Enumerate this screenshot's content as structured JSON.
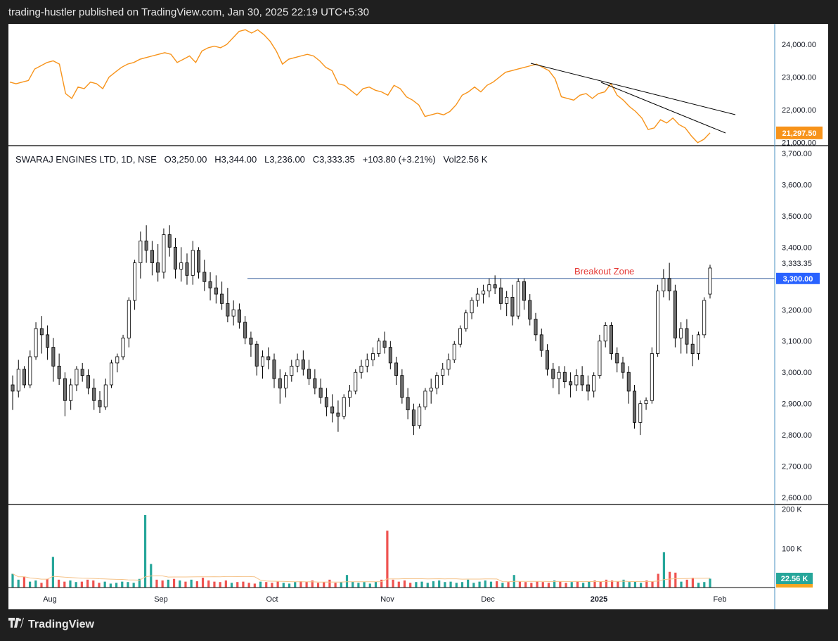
{
  "header": {
    "publish_line": "trading-hustler published on TradingView.com, Jan 30, 2025 22:19 UTC+5:30"
  },
  "footer": {
    "logo_text": "TradingView"
  },
  "ohlc": {
    "symbol": "SWARAJ ENGINES LTD, 1D, NSE",
    "open": "O3,250.00",
    "high": "H3,344.00",
    "low": "L3,236.00",
    "close": "C3,333.35",
    "change": "+103.80 (+3.21%)",
    "volume": "Vol22.56 K"
  },
  "colors": {
    "up_volume": "#26a69a",
    "down_volume": "#ef5350",
    "index_line": "#f7931a",
    "breakout": "#e53935",
    "level_line": "#2962ff"
  },
  "chart_data": [
    {
      "type": "line",
      "pane": "index",
      "y_ticks": [
        "24,000.00",
        "23,000.00",
        "22,000.00",
        "21,000.00"
      ],
      "ylim": [
        20950,
        24500
      ],
      "last_value_label": "21,297.50",
      "values": [
        22850,
        22800,
        22850,
        22900,
        23250,
        23350,
        23450,
        23500,
        23400,
        22500,
        22350,
        22700,
        22650,
        22850,
        22800,
        22650,
        23000,
        23150,
        23300,
        23400,
        23450,
        23550,
        23600,
        23650,
        23700,
        23750,
        23700,
        23450,
        23550,
        23650,
        23450,
        23800,
        23900,
        23950,
        23900,
        24000,
        24200,
        24400,
        24450,
        24350,
        24450,
        24300,
        24100,
        23800,
        23400,
        23550,
        23600,
        23650,
        23700,
        23650,
        23500,
        23300,
        23200,
        22800,
        22750,
        22600,
        22450,
        22650,
        22700,
        22600,
        22550,
        22450,
        22750,
        22650,
        22400,
        22300,
        22150,
        21800,
        21850,
        21900,
        21850,
        21950,
        22150,
        22450,
        22550,
        22700,
        22550,
        22750,
        22850,
        23000,
        23150,
        23200,
        23250,
        23300,
        23350,
        23400,
        23300,
        23200,
        22950,
        22400,
        22350,
        22300,
        22450,
        22500,
        22350,
        22500,
        22550,
        22800,
        22450,
        22300,
        22100,
        21950,
        21750,
        21400,
        21450,
        21700,
        21600,
        21750,
        21550,
        21450,
        21200,
        21000,
        21100,
        21297.5
      ]
    },
    {
      "type": "candlestick",
      "pane": "price",
      "title": "SWARAJ ENGINES LTD, 1D, NSE",
      "y_ticks": [
        "3,700.00",
        "3,600.00",
        "3,500.00",
        "3,400.00",
        "3,300.00",
        "3,200.00",
        "3,100.00",
        "3,000.00",
        "2,900.00",
        "2,800.00",
        "2,700.00",
        "2,600.00"
      ],
      "ylim": [
        2580,
        3720
      ],
      "x_ticks": [
        "Aug",
        "Sep",
        "Oct",
        "Nov",
        "Dec",
        "2025",
        "Feb"
      ],
      "last_price_label": "3,333.35",
      "level_label": "3,300.00",
      "level": 3300,
      "annotation": "Breakout Zone",
      "ohlc": [
        [
          2960,
          2990,
          2880,
          2940
        ],
        [
          2940,
          3040,
          2920,
          3010
        ],
        [
          3010,
          3020,
          2950,
          2960
        ],
        [
          2960,
          3070,
          2950,
          3050
        ],
        [
          3050,
          3160,
          3040,
          3140
        ],
        [
          3140,
          3180,
          3060,
          3120
        ],
        [
          3120,
          3150,
          3040,
          3080
        ],
        [
          3080,
          3110,
          2970,
          3020
        ],
        [
          3020,
          3060,
          2960,
          2980
        ],
        [
          2980,
          3000,
          2860,
          2910
        ],
        [
          2910,
          2980,
          2880,
          2960
        ],
        [
          2960,
          3020,
          2940,
          3010
        ],
        [
          3010,
          3030,
          2970,
          2990
        ],
        [
          2990,
          3010,
          2930,
          2950
        ],
        [
          2950,
          2980,
          2880,
          2910
        ],
        [
          2910,
          2940,
          2870,
          2890
        ],
        [
          2890,
          2980,
          2880,
          2960
        ],
        [
          2960,
          3040,
          2950,
          3030
        ],
        [
          3030,
          3060,
          3000,
          3050
        ],
        [
          3050,
          3120,
          3040,
          3110
        ],
        [
          3110,
          3240,
          3080,
          3230
        ],
        [
          3230,
          3360,
          3200,
          3350
        ],
        [
          3350,
          3450,
          3300,
          3420
        ],
        [
          3420,
          3470,
          3350,
          3390
        ],
        [
          3390,
          3420,
          3310,
          3350
        ],
        [
          3350,
          3410,
          3290,
          3320
        ],
        [
          3320,
          3460,
          3300,
          3440
        ],
        [
          3440,
          3470,
          3370,
          3400
        ],
        [
          3400,
          3430,
          3300,
          3330
        ],
        [
          3330,
          3400,
          3290,
          3350
        ],
        [
          3350,
          3380,
          3280,
          3310
        ],
        [
          3310,
          3420,
          3280,
          3390
        ],
        [
          3390,
          3400,
          3300,
          3320
        ],
        [
          3320,
          3360,
          3260,
          3290
        ],
        [
          3290,
          3320,
          3230,
          3270
        ],
        [
          3270,
          3310,
          3220,
          3250
        ],
        [
          3250,
          3290,
          3200,
          3220
        ],
        [
          3220,
          3270,
          3160,
          3180
        ],
        [
          3180,
          3230,
          3150,
          3200
        ],
        [
          3200,
          3220,
          3140,
          3160
        ],
        [
          3160,
          3180,
          3090,
          3110
        ],
        [
          3110,
          3130,
          3050,
          3090
        ],
        [
          3090,
          3100,
          2990,
          3020
        ],
        [
          3020,
          3070,
          2980,
          3050
        ],
        [
          3050,
          3080,
          3010,
          3040
        ],
        [
          3040,
          3060,
          2950,
          2980
        ],
        [
          2980,
          3010,
          2900,
          2950
        ],
        [
          2950,
          3000,
          2920,
          2990
        ],
        [
          2990,
          3040,
          2970,
          3020
        ],
        [
          3020,
          3060,
          3000,
          3040
        ],
        [
          3040,
          3070,
          2990,
          3010
        ],
        [
          3010,
          3040,
          2960,
          2980
        ],
        [
          2980,
          3010,
          2930,
          2950
        ],
        [
          2950,
          2980,
          2900,
          2920
        ],
        [
          2920,
          2950,
          2860,
          2890
        ],
        [
          2890,
          2930,
          2840,
          2870
        ],
        [
          2870,
          2910,
          2810,
          2860
        ],
        [
          2860,
          2930,
          2850,
          2920
        ],
        [
          2920,
          2960,
          2890,
          2940
        ],
        [
          2940,
          3010,
          2930,
          3000
        ],
        [
          3000,
          3040,
          2980,
          3020
        ],
        [
          3020,
          3060,
          3000,
          3040
        ],
        [
          3040,
          3080,
          3020,
          3060
        ],
        [
          3060,
          3110,
          3050,
          3100
        ],
        [
          3100,
          3130,
          3060,
          3080
        ],
        [
          3080,
          3100,
          3010,
          3030
        ],
        [
          3030,
          3050,
          2960,
          2990
        ],
        [
          2990,
          3010,
          2900,
          2920
        ],
        [
          2920,
          2950,
          2850,
          2880
        ],
        [
          2880,
          2900,
          2800,
          2830
        ],
        [
          2830,
          2900,
          2820,
          2890
        ],
        [
          2890,
          2950,
          2880,
          2940
        ],
        [
          2940,
          2980,
          2900,
          2950
        ],
        [
          2950,
          3000,
          2930,
          2990
        ],
        [
          2990,
          3030,
          2960,
          3010
        ],
        [
          3010,
          3060,
          2990,
          3040
        ],
        [
          3040,
          3100,
          3030,
          3090
        ],
        [
          3090,
          3150,
          3080,
          3140
        ],
        [
          3140,
          3200,
          3130,
          3190
        ],
        [
          3190,
          3240,
          3170,
          3230
        ],
        [
          3230,
          3270,
          3210,
          3250
        ],
        [
          3250,
          3280,
          3220,
          3260
        ],
        [
          3260,
          3300,
          3240,
          3280
        ],
        [
          3280,
          3310,
          3250,
          3270
        ],
        [
          3270,
          3300,
          3200,
          3220
        ],
        [
          3220,
          3260,
          3180,
          3240
        ],
        [
          3240,
          3280,
          3150,
          3180
        ],
        [
          3180,
          3300,
          3170,
          3290
        ],
        [
          3290,
          3300,
          3200,
          3230
        ],
        [
          3230,
          3250,
          3150,
          3170
        ],
        [
          3170,
          3190,
          3100,
          3120
        ],
        [
          3120,
          3140,
          3050,
          3070
        ],
        [
          3070,
          3090,
          2990,
          3010
        ],
        [
          3010,
          3030,
          2950,
          2980
        ],
        [
          2980,
          3020,
          2930,
          3000
        ],
        [
          3000,
          3020,
          2950,
          2970
        ],
        [
          2970,
          3000,
          2920,
          2960
        ],
        [
          2960,
          3010,
          2940,
          2990
        ],
        [
          2990,
          3020,
          2940,
          2960
        ],
        [
          2960,
          2990,
          2910,
          2940
        ],
        [
          2940,
          3000,
          2920,
          2990
        ],
        [
          2990,
          3120,
          2980,
          3100
        ],
        [
          3100,
          3160,
          3080,
          3150
        ],
        [
          3150,
          3160,
          3040,
          3060
        ],
        [
          3060,
          3080,
          3000,
          3030
        ],
        [
          3030,
          3050,
          2980,
          3000
        ],
        [
          3000,
          3020,
          2900,
          2940
        ],
        [
          2940,
          2960,
          2820,
          2840
        ],
        [
          2840,
          2910,
          2800,
          2900
        ],
        [
          2900,
          2920,
          2880,
          2910
        ],
        [
          2910,
          3080,
          2900,
          3060
        ],
        [
          3060,
          3280,
          3050,
          3260
        ],
        [
          3260,
          3330,
          3240,
          3300
        ],
        [
          3300,
          3350,
          3230,
          3260
        ],
        [
          3260,
          3280,
          3080,
          3110
        ],
        [
          3110,
          3160,
          3060,
          3140
        ],
        [
          3140,
          3170,
          3060,
          3090
        ],
        [
          3090,
          3120,
          3020,
          3060
        ],
        [
          3060,
          3130,
          3040,
          3120
        ],
        [
          3120,
          3240,
          3110,
          3230
        ],
        [
          3250,
          3344,
          3236,
          3333.35
        ]
      ]
    },
    {
      "type": "bar",
      "pane": "volume",
      "y_ticks": [
        "200 K",
        "100 K"
      ],
      "ylim": [
        0,
        210
      ],
      "last_value_label": "22.56 K",
      "values": [
        35,
        20,
        28,
        15,
        18,
        12,
        22,
        78,
        20,
        15,
        18,
        14,
        15,
        20,
        18,
        12,
        15,
        10,
        12,
        15,
        14,
        12,
        22,
        185,
        60,
        20,
        18,
        20,
        22,
        18,
        15,
        20,
        16,
        25,
        18,
        15,
        14,
        18,
        12,
        14,
        15,
        12,
        10,
        15,
        14,
        12,
        15,
        12,
        10,
        14,
        16,
        15,
        18,
        12,
        14,
        20,
        12,
        14,
        32,
        15,
        12,
        14,
        10,
        15,
        20,
        145,
        20,
        15,
        18,
        12,
        14,
        15,
        12,
        16,
        18,
        14,
        15,
        12,
        14,
        20,
        12,
        15,
        18,
        15,
        16,
        12,
        14,
        32,
        15,
        14,
        12,
        15,
        14,
        12,
        18,
        16,
        12,
        14,
        15,
        12,
        15,
        18,
        15,
        20,
        18,
        15,
        20,
        14,
        15,
        12,
        18,
        15,
        35,
        90,
        40,
        38,
        15,
        20,
        25,
        12,
        14,
        22.56
      ],
      "up": [
        true,
        true,
        false,
        true,
        true,
        false,
        false,
        true,
        false,
        false,
        true,
        true,
        false,
        false,
        false,
        false,
        true,
        true,
        true,
        true,
        true,
        true,
        true,
        true,
        true,
        false,
        false,
        true,
        false,
        true,
        false,
        true,
        false,
        false,
        false,
        false,
        false,
        false,
        true,
        false,
        false,
        false,
        false,
        true,
        false,
        false,
        false,
        true,
        true,
        true,
        false,
        false,
        false,
        false,
        false,
        false,
        false,
        true,
        true,
        true,
        true,
        true,
        true,
        true,
        false,
        false,
        false,
        false,
        false,
        false,
        true,
        true,
        true,
        true,
        true,
        true,
        true,
        true,
        true,
        true,
        true,
        true,
        true,
        true,
        false,
        true,
        false,
        true,
        false,
        false,
        false,
        false,
        false,
        false,
        true,
        false,
        false,
        true,
        false,
        true,
        true,
        false,
        false,
        false,
        false,
        false,
        true,
        true,
        true,
        true,
        false,
        false,
        false,
        true,
        false,
        false,
        true,
        false,
        false,
        true,
        true,
        true
      ]
    }
  ]
}
